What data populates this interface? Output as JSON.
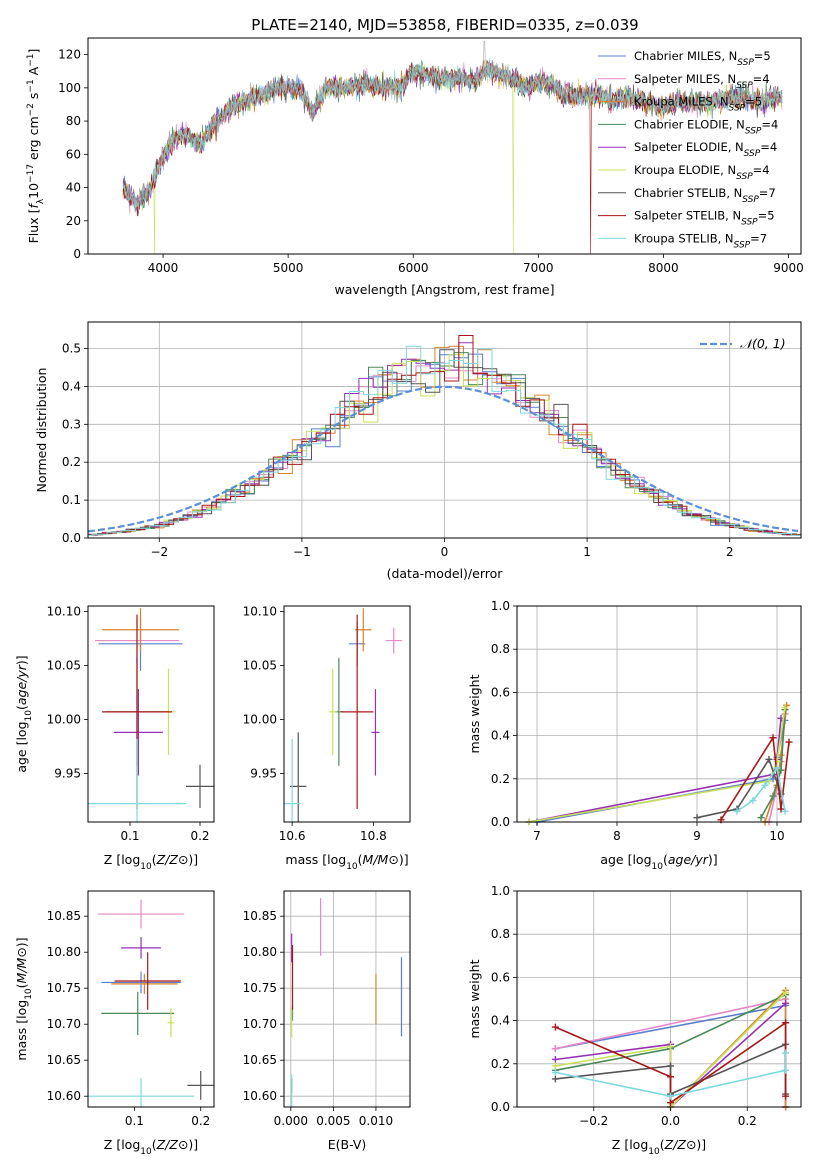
{
  "title": "PLATE=2140, MJD=53858, FIBERID=0335, z=0.039",
  "colors": {
    "Chabrier MILES": "#5b7fcf",
    "Salpeter MILES": "#e58ac7",
    "Kroupa MILES": "#d9822b",
    "Chabrier ELODIE": "#4a8a5a",
    "Salpeter ELODIE": "#9630b5",
    "Kroupa ELODIE": "#c9e05a",
    "Chabrier STELIB": "#555555",
    "Salpeter STELIB": "#a81818",
    "Kroupa STELIB": "#7fd8de"
  },
  "chart_data": [
    {
      "id": "spectrum",
      "type": "line",
      "title": "PLATE=2140, MJD=53858, FIBERID=0335, z=0.039",
      "xlabel": "wavelength [Angstrom, rest frame]",
      "ylabel": "Flux [f_λ 10^-17 erg cm^-2 s^-1 A^-1]",
      "xlim": [
        3400,
        9100
      ],
      "ylim": [
        0,
        130
      ],
      "xticks": [
        4000,
        5000,
        6000,
        7000,
        8000,
        9000
      ],
      "yticks": [
        0,
        20,
        40,
        60,
        80,
        100,
        120
      ],
      "grid": false,
      "legend_position": "top-right",
      "legend": [
        {
          "name": "Chabrier MILES",
          "n": "5"
        },
        {
          "name": "Salpeter MILES",
          "n": "4"
        },
        {
          "name": "Kroupa MILES",
          "n": "5"
        },
        {
          "name": "Chabrier ELODIE",
          "n": "4"
        },
        {
          "name": "Salpeter ELODIE",
          "n": "4"
        },
        {
          "name": "Kroupa ELODIE",
          "n": "4"
        },
        {
          "name": "Chabrier STELIB",
          "n": "7"
        },
        {
          "name": "Salpeter STELIB",
          "n": "5"
        },
        {
          "name": "Kroupa STELIB",
          "n": "7"
        }
      ],
      "x": [
        3700,
        3800,
        3900,
        4000,
        4100,
        4200,
        4300,
        4400,
        4500,
        4600,
        4700,
        4800,
        4900,
        5000,
        5100,
        5200,
        5300,
        5400,
        5500,
        5600,
        5700,
        5800,
        5900,
        6000,
        6100,
        6200,
        6300,
        6400,
        6500,
        6600,
        6700,
        6800,
        6900,
        7000,
        7100,
        7200,
        7300,
        7400,
        7500,
        7600,
        7700,
        7800,
        7900,
        8000,
        8100,
        8200,
        8300,
        8400,
        8500,
        8600,
        8700,
        8800,
        8900
      ],
      "y": [
        38,
        30,
        40,
        60,
        70,
        72,
        65,
        78,
        85,
        90,
        94,
        96,
        100,
        100,
        99,
        85,
        100,
        100,
        100,
        102,
        101,
        101,
        100,
        110,
        108,
        106,
        105,
        106,
        104,
        112,
        108,
        105,
        100,
        104,
        102,
        96,
        95,
        96,
        95,
        92,
        94,
        93,
        90,
        88,
        92,
        91,
        90,
        92,
        93,
        94,
        93,
        92,
        94
      ],
      "cutoffs": [
        {
          "series": "Kroupa ELODIE",
          "x": 3930
        },
        {
          "series": "Kroupa ELODIE",
          "x": 6800
        },
        {
          "series": "Salpeter STELIB",
          "x": 7420
        }
      ]
    },
    {
      "id": "residuals",
      "type": "histogram",
      "xlabel": "(data-model)/error",
      "ylabel": "Normed distribution",
      "xlim": [
        -2.5,
        2.5
      ],
      "ylim": [
        0,
        0.57
      ],
      "xticks": [
        -2,
        -1,
        0,
        1,
        2
      ],
      "yticks": [
        0.0,
        0.1,
        0.2,
        0.3,
        0.4,
        0.5
      ],
      "grid": true,
      "legend_position": "top-right",
      "reference_curve": {
        "label": "𝒩(0, 1)",
        "mean": 0,
        "sigma": 1
      },
      "bin_width": 0.1
    },
    {
      "id": "z-age",
      "type": "scatter",
      "xlabel": "Z [log10(Z/Z⊙)]",
      "ylabel": "age [log10(age/yr)]",
      "xlim": [
        0.04,
        0.22
      ],
      "ylim": [
        9.905,
        10.105
      ],
      "xticks": [
        0.1,
        0.2
      ],
      "yticks": [
        9.95,
        10.0,
        10.05,
        10.1
      ],
      "grid": false,
      "points": [
        {
          "series": "Chabrier MILES",
          "x": 0.115,
          "y": 10.07,
          "xerr": 0.06,
          "yerr": 0.025
        },
        {
          "series": "Salpeter MILES",
          "x": 0.11,
          "y": 10.073,
          "xerr": 0.06,
          "yerr": 0.02
        },
        {
          "series": "Kroupa MILES",
          "x": 0.115,
          "y": 10.083,
          "xerr": 0.055,
          "yerr": 0.02
        },
        {
          "series": "Chabrier ELODIE",
          "x": 0.11,
          "y": 10.007,
          "xerr": 0.045,
          "yerr": 0.05
        },
        {
          "series": "Salpeter ELODIE",
          "x": 0.112,
          "y": 9.988,
          "xerr": 0.035,
          "yerr": 0.04
        },
        {
          "series": "Kroupa ELODIE",
          "x": 0.155,
          "y": 10.007,
          "xerr": 0.01,
          "yerr": 0.04
        },
        {
          "series": "Chabrier STELIB",
          "x": 0.2,
          "y": 9.938,
          "xerr": 0.02,
          "yerr": 0.02
        },
        {
          "series": "Salpeter STELIB",
          "x": 0.11,
          "y": 10.007,
          "xerr": 0.05,
          "yerr": 0.09
        },
        {
          "series": "Kroupa STELIB",
          "x": 0.11,
          "y": 9.922,
          "xerr": 0.07,
          "yerr": 0.06
        }
      ]
    },
    {
      "id": "mass-age",
      "type": "scatter",
      "xlabel": "mass [log10(M/M⊙)]",
      "ylabel": "",
      "xlim": [
        10.58,
        10.89
      ],
      "ylim": [
        9.905,
        10.105
      ],
      "xticks": [
        10.6,
        10.8
      ],
      "yticks": [
        9.95,
        10.0,
        10.05,
        10.1
      ],
      "grid": false,
      "points": [
        {
          "series": "Chabrier MILES",
          "x": 10.76,
          "y": 10.07,
          "xerr": 0.02,
          "yerr": 0.02
        },
        {
          "series": "Salpeter MILES",
          "x": 10.85,
          "y": 10.073,
          "xerr": 0.02,
          "yerr": 0.012
        },
        {
          "series": "Kroupa MILES",
          "x": 10.775,
          "y": 10.083,
          "xerr": 0.02,
          "yerr": 0.02
        },
        {
          "series": "Chabrier ELODIE",
          "x": 10.715,
          "y": 10.007,
          "xerr": 0.01,
          "yerr": 0.05
        },
        {
          "series": "Salpeter ELODIE",
          "x": 10.805,
          "y": 9.988,
          "xerr": 0.01,
          "yerr": 0.04
        },
        {
          "series": "Kroupa ELODIE",
          "x": 10.7,
          "y": 10.007,
          "xerr": 0.01,
          "yerr": 0.04
        },
        {
          "series": "Chabrier STELIB",
          "x": 10.615,
          "y": 9.938,
          "xerr": 0.02,
          "yerr": 0.05
        },
        {
          "series": "Salpeter STELIB",
          "x": 10.76,
          "y": 10.007,
          "xerr": 0.04,
          "yerr": 0.09
        },
        {
          "series": "Kroupa STELIB",
          "x": 10.6,
          "y": 9.922,
          "xerr": 0.02,
          "yerr": 0.06
        }
      ]
    },
    {
      "id": "age-weight",
      "type": "line",
      "xlabel": "age [log10(age/yr)]",
      "ylabel": "mass weight",
      "xlim": [
        6.75,
        10.3
      ],
      "ylim": [
        0,
        1
      ],
      "xticks": [
        7,
        8,
        9,
        10
      ],
      "yticks": [
        0.0,
        0.2,
        0.4,
        0.6,
        0.8,
        1.0
      ],
      "grid": true,
      "series": [
        {
          "name": "Chabrier MILES",
          "x": [
            7.0,
            9.95,
            10.0,
            10.1
          ],
          "y": [
            0.0,
            0.2,
            0.3,
            0.47
          ]
        },
        {
          "name": "Salpeter MILES",
          "x": [
            9.9,
            10.0,
            10.05,
            10.1
          ],
          "y": [
            0.0,
            0.16,
            0.28,
            0.5
          ]
        },
        {
          "name": "Kroupa MILES",
          "x": [
            9.85,
            10.0,
            10.05,
            10.12
          ],
          "y": [
            0.0,
            0.17,
            0.31,
            0.54
          ]
        },
        {
          "name": "Chabrier ELODIE",
          "x": [
            9.8,
            9.95,
            10.05,
            10.1
          ],
          "y": [
            0.02,
            0.12,
            0.24,
            0.52
          ]
        },
        {
          "name": "Salpeter ELODIE",
          "x": [
            6.9,
            9.95,
            10.0,
            10.05
          ],
          "y": [
            0.0,
            0.22,
            0.29,
            0.48
          ]
        },
        {
          "name": "Kroupa ELODIE",
          "x": [
            6.9,
            9.9,
            10.0,
            10.1
          ],
          "y": [
            0.0,
            0.19,
            0.28,
            0.53
          ]
        },
        {
          "name": "Chabrier STELIB",
          "x": [
            9.0,
            9.5,
            9.9,
            10.05
          ],
          "y": [
            0.02,
            0.06,
            0.29,
            0.13
          ]
        },
        {
          "name": "Salpeter STELIB",
          "x": [
            9.3,
            9.95,
            10.05,
            10.15
          ],
          "y": [
            0.01,
            0.39,
            0.06,
            0.37
          ]
        },
        {
          "name": "Kroupa STELIB",
          "x": [
            9.5,
            9.7,
            9.85,
            10.0,
            10.1
          ],
          "y": [
            0.05,
            0.1,
            0.17,
            0.25,
            0.05
          ]
        }
      ]
    },
    {
      "id": "z-mass",
      "type": "scatter",
      "xlabel": "Z [log10(Z/Z⊙)]",
      "ylabel": "mass [log10(M/M⊙)]",
      "xlim": [
        0.03,
        0.22
      ],
      "ylim": [
        10.585,
        10.885
      ],
      "xticks": [
        0.1,
        0.2
      ],
      "yticks": [
        10.6,
        10.65,
        10.7,
        10.75,
        10.8,
        10.85
      ],
      "grid": false,
      "points": [
        {
          "series": "Chabrier MILES",
          "x": 0.11,
          "y": 10.758,
          "xerr": 0.06,
          "yerr": 0.015
        },
        {
          "series": "Salpeter MILES",
          "x": 0.11,
          "y": 10.853,
          "xerr": 0.065,
          "yerr": 0.02
        },
        {
          "series": "Kroupa MILES",
          "x": 0.115,
          "y": 10.756,
          "xerr": 0.05,
          "yerr": 0.014
        },
        {
          "series": "Chabrier ELODIE",
          "x": 0.105,
          "y": 10.715,
          "xerr": 0.055,
          "yerr": 0.03
        },
        {
          "series": "Salpeter ELODIE",
          "x": 0.11,
          "y": 10.806,
          "xerr": 0.03,
          "yerr": 0.015
        },
        {
          "series": "Kroupa ELODIE",
          "x": 0.155,
          "y": 10.702,
          "xerr": 0.005,
          "yerr": 0.02
        },
        {
          "series": "Chabrier STELIB",
          "x": 0.2,
          "y": 10.615,
          "xerr": 0.02,
          "yerr": 0.02
        },
        {
          "series": "Salpeter STELIB",
          "x": 0.12,
          "y": 10.76,
          "xerr": 0.05,
          "yerr": 0.04
        },
        {
          "series": "Kroupa STELIB",
          "x": 0.11,
          "y": 10.6,
          "xerr": 0.08,
          "yerr": 0.025
        }
      ]
    },
    {
      "id": "ebv-mass",
      "type": "scatter",
      "xlabel": "E(B-V)",
      "ylabel": "",
      "xlim": [
        -0.0008,
        0.014
      ],
      "ylim": [
        10.585,
        10.885
      ],
      "xticks": [
        0.0,
        0.005,
        0.01
      ],
      "yticks": [
        10.6,
        10.65,
        10.7,
        10.75,
        10.8,
        10.85
      ],
      "grid": true,
      "points": [
        {
          "series": "Chabrier MILES",
          "x": 0.013,
          "y": 10.738,
          "xerr": 0,
          "yerr": 0.055
        },
        {
          "series": "Salpeter MILES",
          "x": 0.0035,
          "y": 10.835,
          "xerr": 0,
          "yerr": 0.04
        },
        {
          "series": "Kroupa MILES",
          "x": 0.01,
          "y": 10.735,
          "xerr": 0,
          "yerr": 0.035
        },
        {
          "series": "Chabrier ELODIE",
          "x": 0.0002,
          "y": 10.715,
          "xerr": 0,
          "yerr": 0.01
        },
        {
          "series": "Salpeter ELODIE",
          "x": 0.0001,
          "y": 10.806,
          "xerr": 0,
          "yerr": 0.02
        },
        {
          "series": "Kroupa ELODIE",
          "x": 0.0001,
          "y": 10.702,
          "xerr": 0,
          "yerr": 0.02
        },
        {
          "series": "Chabrier STELIB",
          "x": 0.0001,
          "y": 10.615,
          "xerr": 0,
          "yerr": 0.01
        },
        {
          "series": "Salpeter STELIB",
          "x": 0.0002,
          "y": 10.765,
          "xerr": 0,
          "yerr": 0.045
        },
        {
          "series": "Kroupa STELIB",
          "x": 0.0001,
          "y": 10.6,
          "xerr": 0,
          "yerr": 0.03
        }
      ]
    },
    {
      "id": "z-weight",
      "type": "line",
      "xlabel": "Z [log10(Z/Z⊙)]",
      "ylabel": "mass weight",
      "xlim": [
        -0.4,
        0.34
      ],
      "ylim": [
        0,
        1
      ],
      "xticks": [
        -0.2,
        0.0,
        0.2
      ],
      "yticks": [
        0.0,
        0.2,
        0.4,
        0.6,
        0.8,
        1.0
      ],
      "grid": true,
      "series": [
        {
          "name": "Chabrier MILES",
          "x": [
            -0.3,
            0.3,
            0.3
          ],
          "y": [
            0.27,
            0.47,
            0.0
          ]
        },
        {
          "name": "Salpeter MILES",
          "x": [
            -0.3,
            0.3,
            0.3
          ],
          "y": [
            0.27,
            0.5,
            0.0
          ]
        },
        {
          "name": "Kroupa MILES",
          "x": [
            0.0,
            0.3,
            0.3
          ],
          "y": [
            0.0,
            0.54,
            0.0
          ]
        },
        {
          "name": "Chabrier ELODIE",
          "x": [
            -0.3,
            0.0,
            0.3
          ],
          "y": [
            0.17,
            0.27,
            0.52
          ]
        },
        {
          "name": "Salpeter ELODIE",
          "x": [
            -0.3,
            0.0,
            0.0,
            0.3
          ],
          "y": [
            0.22,
            0.29,
            0.0,
            0.48
          ]
        },
        {
          "name": "Kroupa ELODIE",
          "x": [
            -0.3,
            0.0,
            0.0,
            0.3
          ],
          "y": [
            0.19,
            0.28,
            0.0,
            0.53
          ]
        },
        {
          "name": "Chabrier STELIB",
          "x": [
            -0.3,
            0.0,
            0.0,
            0.3,
            0.3
          ],
          "y": [
            0.13,
            0.19,
            0.06,
            0.29,
            0.06
          ]
        },
        {
          "name": "Salpeter STELIB",
          "x": [
            -0.3,
            0.0,
            0.0,
            0.3,
            0.3
          ],
          "y": [
            0.37,
            0.14,
            0.02,
            0.39,
            0.05
          ]
        },
        {
          "name": "Kroupa STELIB",
          "x": [
            -0.3,
            0.0,
            0.3,
            0.3
          ],
          "y": [
            0.16,
            0.05,
            0.17,
            0.25
          ]
        }
      ]
    }
  ]
}
